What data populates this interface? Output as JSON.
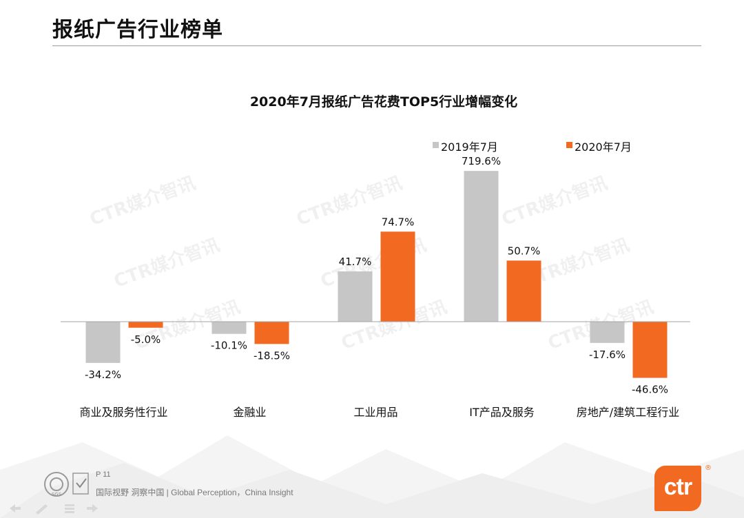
{
  "page": {
    "title": "报纸广告行业榜单",
    "page_number": "P 11",
    "slogan": "国际视野  洞察中国 |  Global Perception，China Insight",
    "watermark": "CTR媒介智讯",
    "logo_text": "ctr",
    "logo_mark": "®",
    "cert_label": "SGS"
  },
  "colors": {
    "series_2019": "#c6c6c6",
    "series_2020": "#f26a21",
    "accent": "#f26a21"
  },
  "chart_data": {
    "type": "bar",
    "title": "2020年7月报纸广告花费TOP5行业增幅变化",
    "categories": [
      "商业及服务性行业",
      "金融业",
      "工业用品",
      "IT产品及服务",
      "房地产/建筑工程行业"
    ],
    "series": [
      {
        "name": "2019年7月",
        "values": [
          -34.2,
          -10.1,
          41.7,
          719.6,
          -17.6
        ],
        "labels": [
          "-34.2%",
          "-10.1%",
          "41.7%",
          "719.6%",
          "-17.6%"
        ]
      },
      {
        "name": "2020年7月",
        "values": [
          -5.0,
          -18.5,
          74.7,
          50.7,
          -46.6
        ],
        "labels": [
          "-5.0%",
          "-18.5%",
          "74.7%",
          "50.7%",
          "-46.6%"
        ]
      }
    ],
    "legend_position": "top-right",
    "xlabel": "",
    "ylabel": "",
    "axis_note": "non-linear scale (visual only)"
  }
}
